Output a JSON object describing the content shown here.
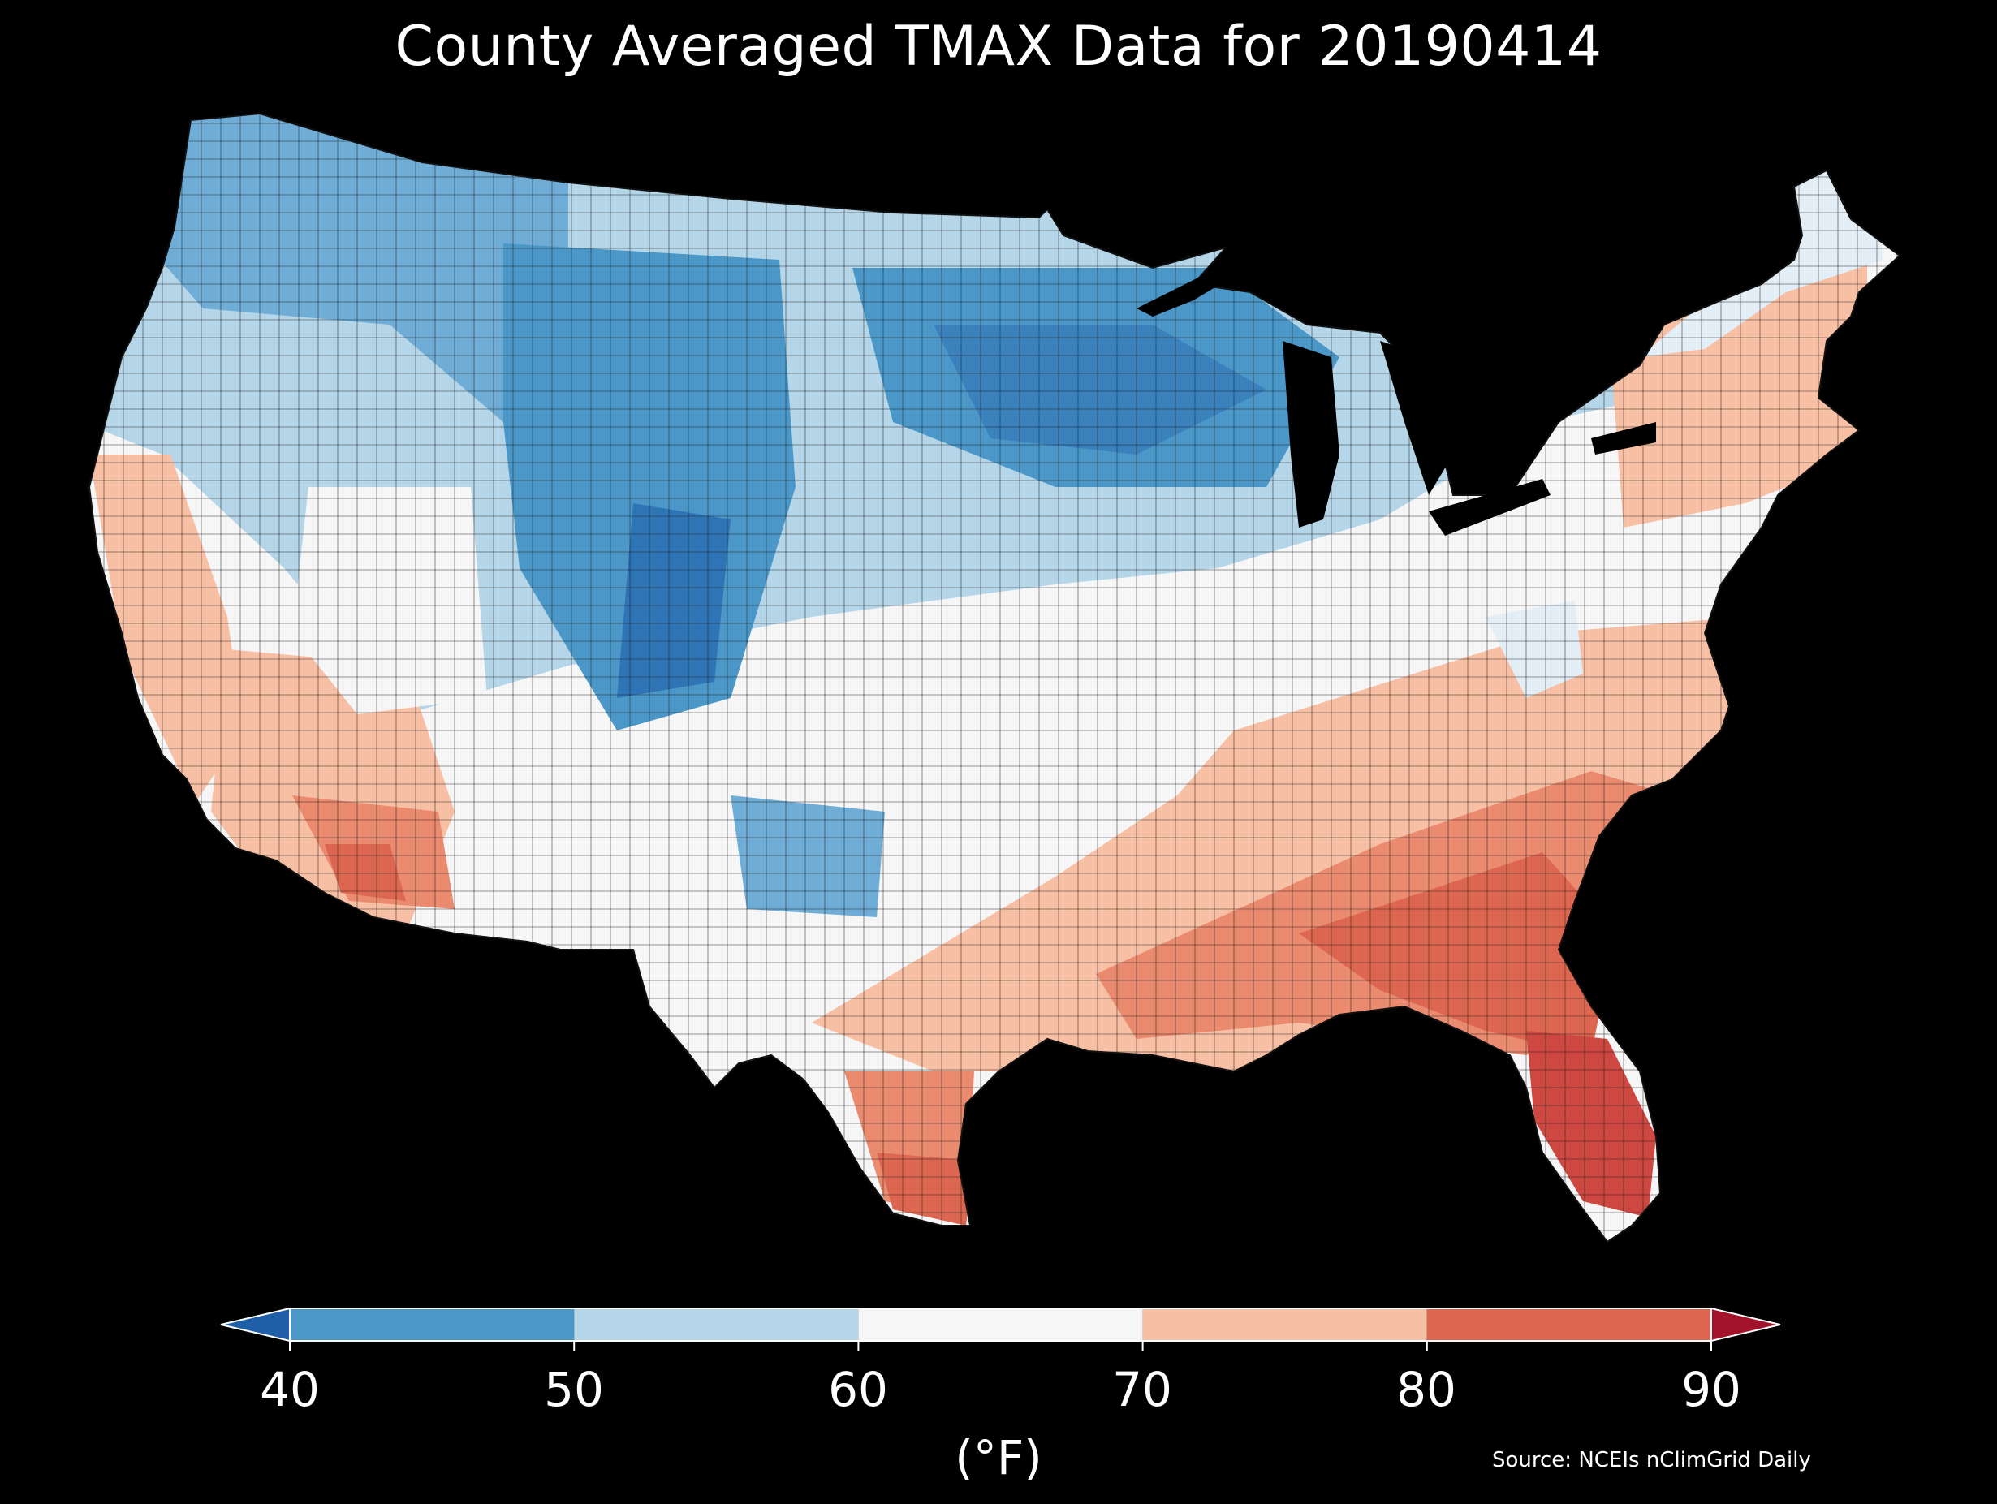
{
  "title": "County Averaged TMAX Data for 20190414",
  "colorbar": {
    "ticks": [
      "40",
      "50",
      "60",
      "70",
      "80",
      "90"
    ],
    "bins": [
      {
        "from": 40,
        "to": 50,
        "color": "#4b98c8"
      },
      {
        "from": 50,
        "to": 60,
        "color": "#b4d6e8"
      },
      {
        "from": 60,
        "to": 70,
        "color": "#f6f6f6"
      },
      {
        "from": 70,
        "to": 80,
        "color": "#f7bfa4"
      },
      {
        "from": 80,
        "to": 90,
        "color": "#dd6650"
      }
    ],
    "under_color": "#1f5fa8",
    "over_color": "#a2132b",
    "unit": "(°F)"
  },
  "source": "Source: NCEIs nClimGrid Daily",
  "colors": {
    "background": "#000000",
    "text": "#ffffff",
    "county_border": "#1a1a1a"
  }
}
